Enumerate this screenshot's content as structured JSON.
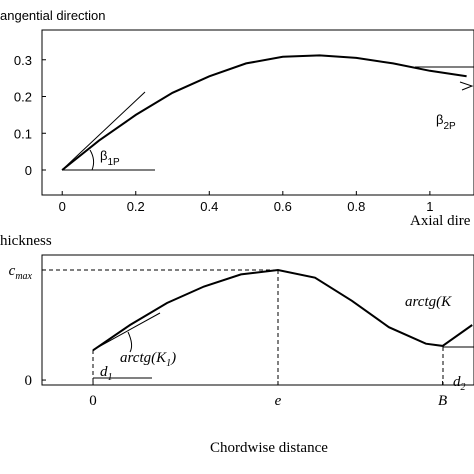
{
  "chart_data": [
    {
      "type": "line",
      "ylabel": "angential direction",
      "xlabel": "Axial dire",
      "x": [
        0,
        0.1,
        0.2,
        0.3,
        0.4,
        0.5,
        0.6,
        0.7,
        0.8,
        0.9,
        1.0,
        1.1
      ],
      "values": [
        0,
        0.08,
        0.15,
        0.21,
        0.255,
        0.29,
        0.308,
        0.312,
        0.305,
        0.29,
        0.27,
        0.255
      ],
      "color": "#000000",
      "xlim": [
        -0.055,
        1.12
      ],
      "ylim": [
        -0.068,
        0.381
      ],
      "xticks": [
        0,
        0.2,
        0.4,
        0.6,
        0.8,
        1
      ],
      "yticks": [
        0,
        0.1,
        0.2,
        0.3
      ],
      "annotations": [
        {
          "symbol": "β",
          "sub": "1P"
        },
        {
          "symbol": "β",
          "sub": "2P"
        }
      ]
    },
    {
      "type": "line",
      "ylabel": "hickness",
      "xlabel": "Chordwise distance",
      "x": [
        0,
        0.2,
        0.4,
        0.6,
        0.8,
        1.0,
        1.2,
        1.4,
        1.6,
        1.8,
        1.89,
        2.05
      ],
      "values": [
        0.27,
        0.5,
        0.7,
        0.85,
        0.96,
        1.0,
        0.93,
        0.72,
        0.48,
        0.33,
        0.31,
        0.5
      ],
      "color": "#000000",
      "xlim": [
        -0.276,
        2.06
      ],
      "ylim": [
        -0.045,
        1.136
      ],
      "xticks": [
        {
          "value": 0,
          "label": "0"
        },
        {
          "value": 1,
          "label": "e"
        },
        {
          "value": 1.89,
          "label": "B"
        }
      ],
      "yticks": [
        {
          "value": 0,
          "label": "0"
        },
        {
          "value": 1,
          "label": "c",
          "sub": "max"
        }
      ],
      "annotations": [
        {
          "text": "arctg(K",
          "sub": "1",
          "tail": ")"
        },
        {
          "text": "arctg(K"
        },
        {
          "text": "d",
          "sub": "1"
        },
        {
          "text": "d",
          "sub": "2"
        }
      ]
    }
  ]
}
